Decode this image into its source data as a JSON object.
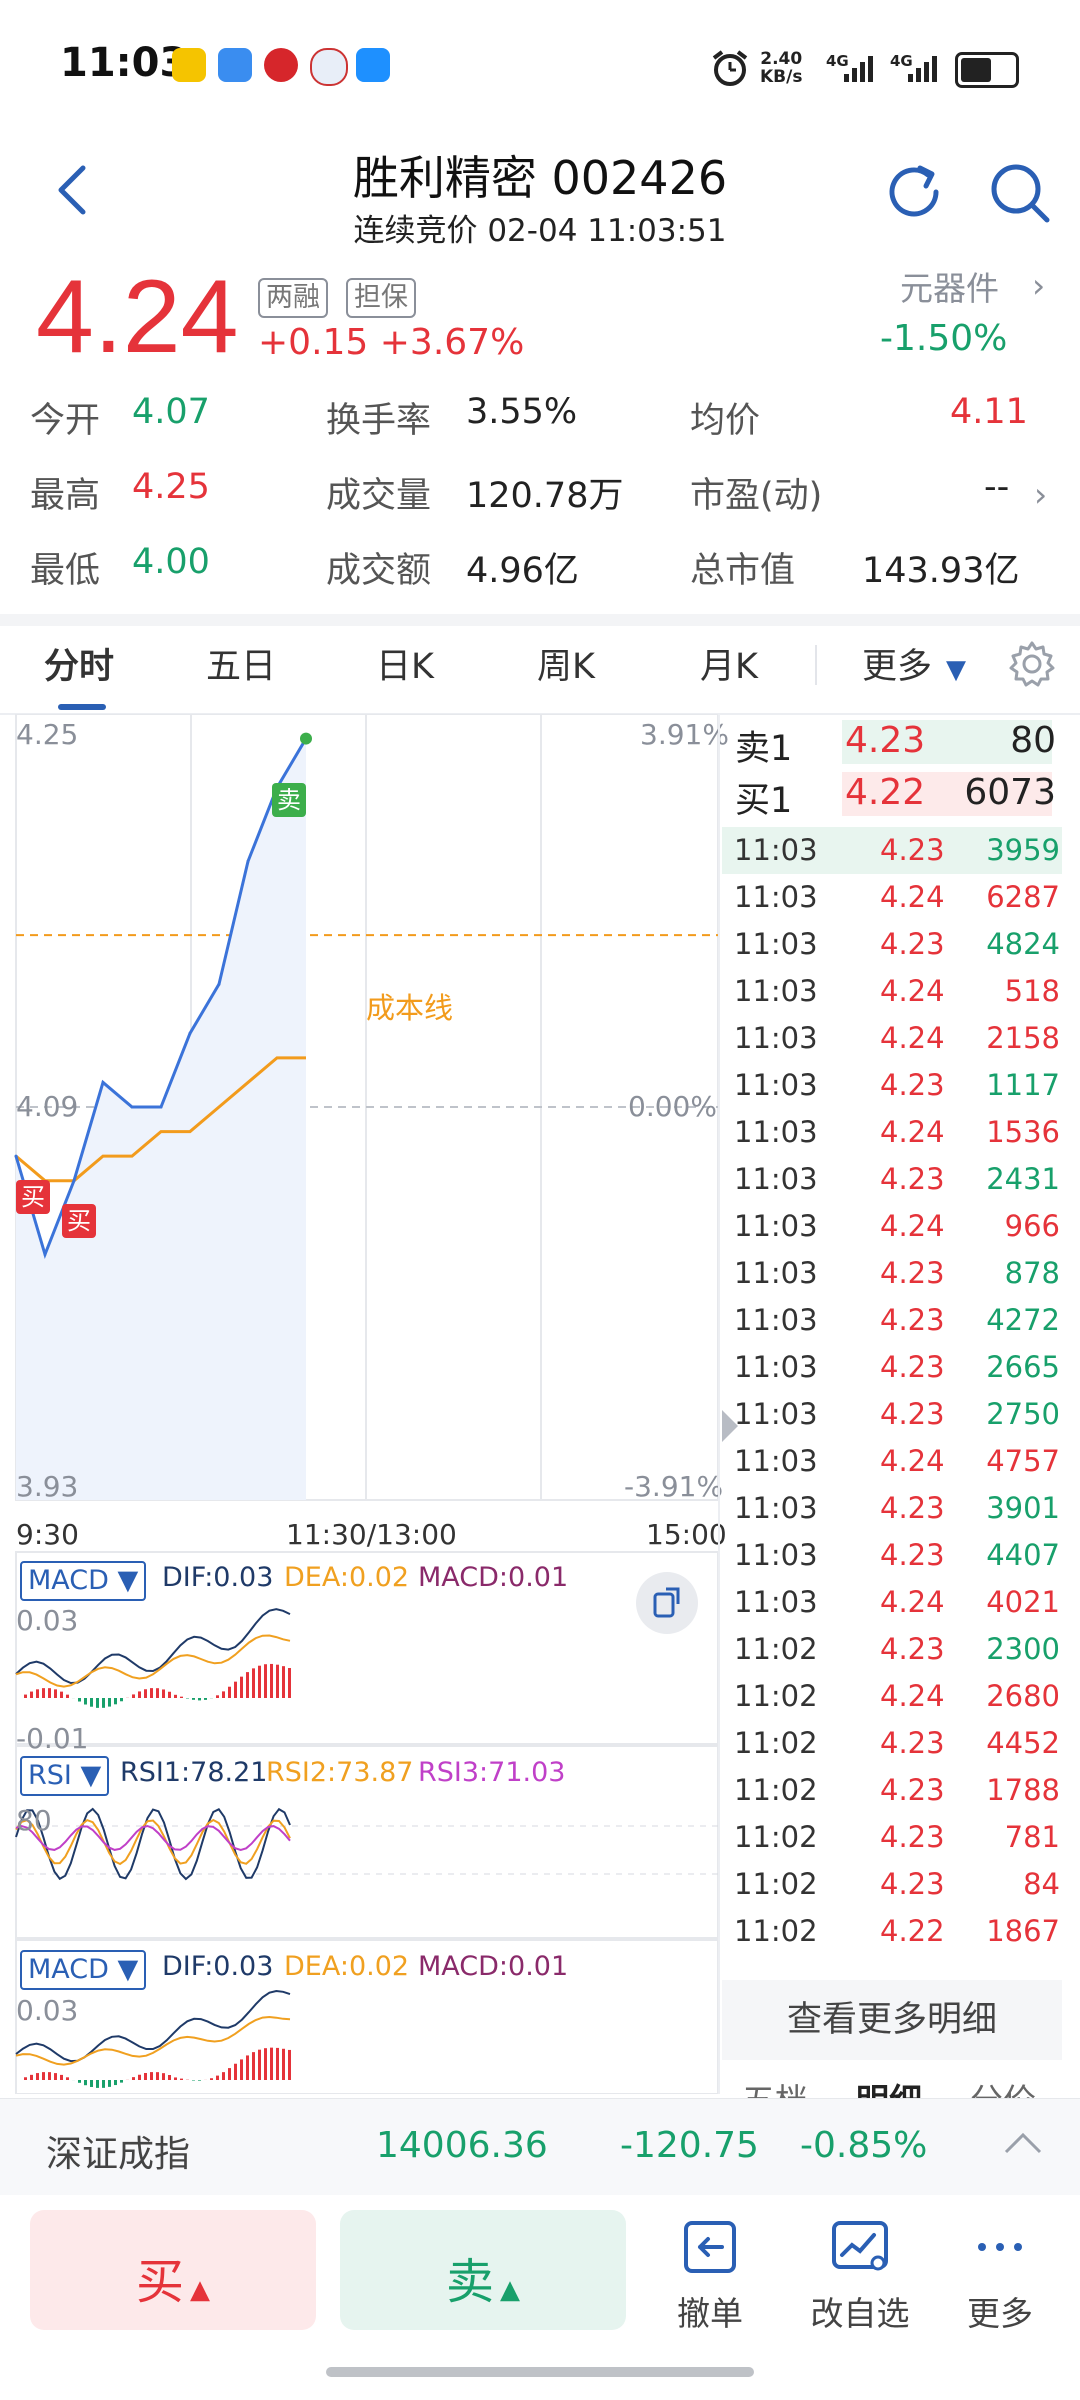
{
  "status_bar": {
    "time": "11:03",
    "net_speed": "2.40",
    "net_unit": "KB/s",
    "signal1": "4G",
    "signal2": "4G"
  },
  "header": {
    "title": "胜利精密 002426",
    "subtitle": "连续竞价 02-04 11:03:51"
  },
  "quote": {
    "price": "4.24",
    "tag1": "两融",
    "tag2": "担保",
    "change": "+0.15 +3.67%",
    "sector": "元器件",
    "sector_pct": "-1.50%",
    "stats": [
      {
        "label": "今开",
        "value": "4.07"
      },
      {
        "label": "换手率",
        "value": "3.55%"
      },
      {
        "label": "均价",
        "value": "4.11"
      },
      {
        "label": "最高",
        "value": "4.25"
      },
      {
        "label": "成交量",
        "value": "120.78万"
      },
      {
        "label": "市盈(动)",
        "value": "--"
      },
      {
        "label": "最低",
        "value": "4.00"
      },
      {
        "label": "成交额",
        "value": "4.96亿"
      },
      {
        "label": "总市值",
        "value": "143.93亿"
      }
    ]
  },
  "tabs": [
    {
      "label": "分时"
    },
    {
      "label": "五日"
    },
    {
      "label": "日K"
    },
    {
      "label": "周K"
    },
    {
      "label": "月K"
    },
    {
      "label": "更多"
    }
  ],
  "chart": {
    "y_high": "4.25",
    "y_mid": "4.09",
    "y_low": "3.93",
    "pct_high": "3.91%",
    "pct_mid": "0.00%",
    "pct_low": "-3.91%",
    "x_start": "9:30",
    "x_mid": "11:30/13:00",
    "x_end": "15:00",
    "cost_line_label": "成本线",
    "sell_marker": "卖",
    "buy_marker": "买"
  },
  "chart_data": {
    "type": "line",
    "title": "",
    "x": [
      "9:30",
      "9:40",
      "9:50",
      "10:00",
      "10:10",
      "10:20",
      "10:30",
      "10:40",
      "10:50",
      "11:00",
      "11:03"
    ],
    "series": [
      {
        "name": "",
        "values": [
          4.07,
          4.03,
          4.06,
          4.1,
          4.09,
          4.09,
          4.12,
          4.14,
          4.19,
          4.22,
          4.24
        ]
      },
      {
        "name": "",
        "values": [
          4.07,
          4.06,
          4.06,
          4.07,
          4.07,
          4.08,
          4.08,
          4.09,
          4.1,
          4.11,
          4.11
        ]
      }
    ],
    "ylim": [
      3.93,
      4.25
    ],
    "cost_line": 4.16
  },
  "indicators": {
    "macd_name": "MACD ▼",
    "dif": "DIF:0.03",
    "dea": "DEA:0.02",
    "macd": "MACD:0.01",
    "macd_hi": "0.03",
    "macd_lo": "-0.01",
    "rsi_name": "RSI ▼",
    "rsi1": "RSI1:78.21",
    "rsi2": "RSI2:73.87",
    "rsi3": "RSI3:71.03",
    "rsi_mark": "80"
  },
  "orderbook": {
    "sell1_label": "卖1",
    "sell1_price": "4.23",
    "sell1_vol": "80",
    "buy1_label": "买1",
    "buy1_price": "4.22",
    "buy1_vol": "6073"
  },
  "ticks": [
    {
      "t": "11:03",
      "p": "4.23",
      "v": "3959",
      "pc": "red",
      "vc": "green"
    },
    {
      "t": "11:03",
      "p": "4.24",
      "v": "6287",
      "pc": "red",
      "vc": "red"
    },
    {
      "t": "11:03",
      "p": "4.23",
      "v": "4824",
      "pc": "red",
      "vc": "green"
    },
    {
      "t": "11:03",
      "p": "4.24",
      "v": "518",
      "pc": "red",
      "vc": "red"
    },
    {
      "t": "11:03",
      "p": "4.24",
      "v": "2158",
      "pc": "red",
      "vc": "red"
    },
    {
      "t": "11:03",
      "p": "4.23",
      "v": "1117",
      "pc": "red",
      "vc": "green"
    },
    {
      "t": "11:03",
      "p": "4.24",
      "v": "1536",
      "pc": "red",
      "vc": "red"
    },
    {
      "t": "11:03",
      "p": "4.23",
      "v": "2431",
      "pc": "red",
      "vc": "green"
    },
    {
      "t": "11:03",
      "p": "4.24",
      "v": "966",
      "pc": "red",
      "vc": "red"
    },
    {
      "t": "11:03",
      "p": "4.23",
      "v": "878",
      "pc": "red",
      "vc": "green"
    },
    {
      "t": "11:03",
      "p": "4.23",
      "v": "4272",
      "pc": "red",
      "vc": "green"
    },
    {
      "t": "11:03",
      "p": "4.23",
      "v": "2665",
      "pc": "red",
      "vc": "green"
    },
    {
      "t": "11:03",
      "p": "4.23",
      "v": "2750",
      "pc": "red",
      "vc": "green"
    },
    {
      "t": "11:03",
      "p": "4.24",
      "v": "4757",
      "pc": "red",
      "vc": "red"
    },
    {
      "t": "11:03",
      "p": "4.23",
      "v": "3901",
      "pc": "red",
      "vc": "green"
    },
    {
      "t": "11:03",
      "p": "4.23",
      "v": "4407",
      "pc": "red",
      "vc": "green"
    },
    {
      "t": "11:03",
      "p": "4.24",
      "v": "4021",
      "pc": "red",
      "vc": "red"
    },
    {
      "t": "11:02",
      "p": "4.23",
      "v": "2300",
      "pc": "red",
      "vc": "green"
    },
    {
      "t": "11:02",
      "p": "4.24",
      "v": "2680",
      "pc": "red",
      "vc": "red"
    },
    {
      "t": "11:02",
      "p": "4.23",
      "v": "4452",
      "pc": "red",
      "vc": "red"
    },
    {
      "t": "11:02",
      "p": "4.23",
      "v": "1788",
      "pc": "red",
      "vc": "red"
    },
    {
      "t": "11:02",
      "p": "4.23",
      "v": "781",
      "pc": "red",
      "vc": "red"
    },
    {
      "t": "11:02",
      "p": "4.23",
      "v": "84",
      "pc": "red",
      "vc": "red"
    },
    {
      "t": "11:02",
      "p": "4.22",
      "v": "1867",
      "pc": "red",
      "vc": "red"
    }
  ],
  "more_detail": "查看更多明细",
  "bottom_tabs": [
    "五档",
    "明细",
    "分价"
  ],
  "index": {
    "name": "深证成指",
    "value": "14006.36",
    "change": "-120.75",
    "pct": "-0.85%"
  },
  "actions": {
    "buy": "买",
    "sell": "卖",
    "cancel": "撤单",
    "watchlist": "改自选",
    "more": "更多"
  },
  "colors": {
    "up": "#e5333a",
    "down": "#18a06b",
    "accent": "#2a5fb4",
    "avg_line": "#f29b1c"
  }
}
